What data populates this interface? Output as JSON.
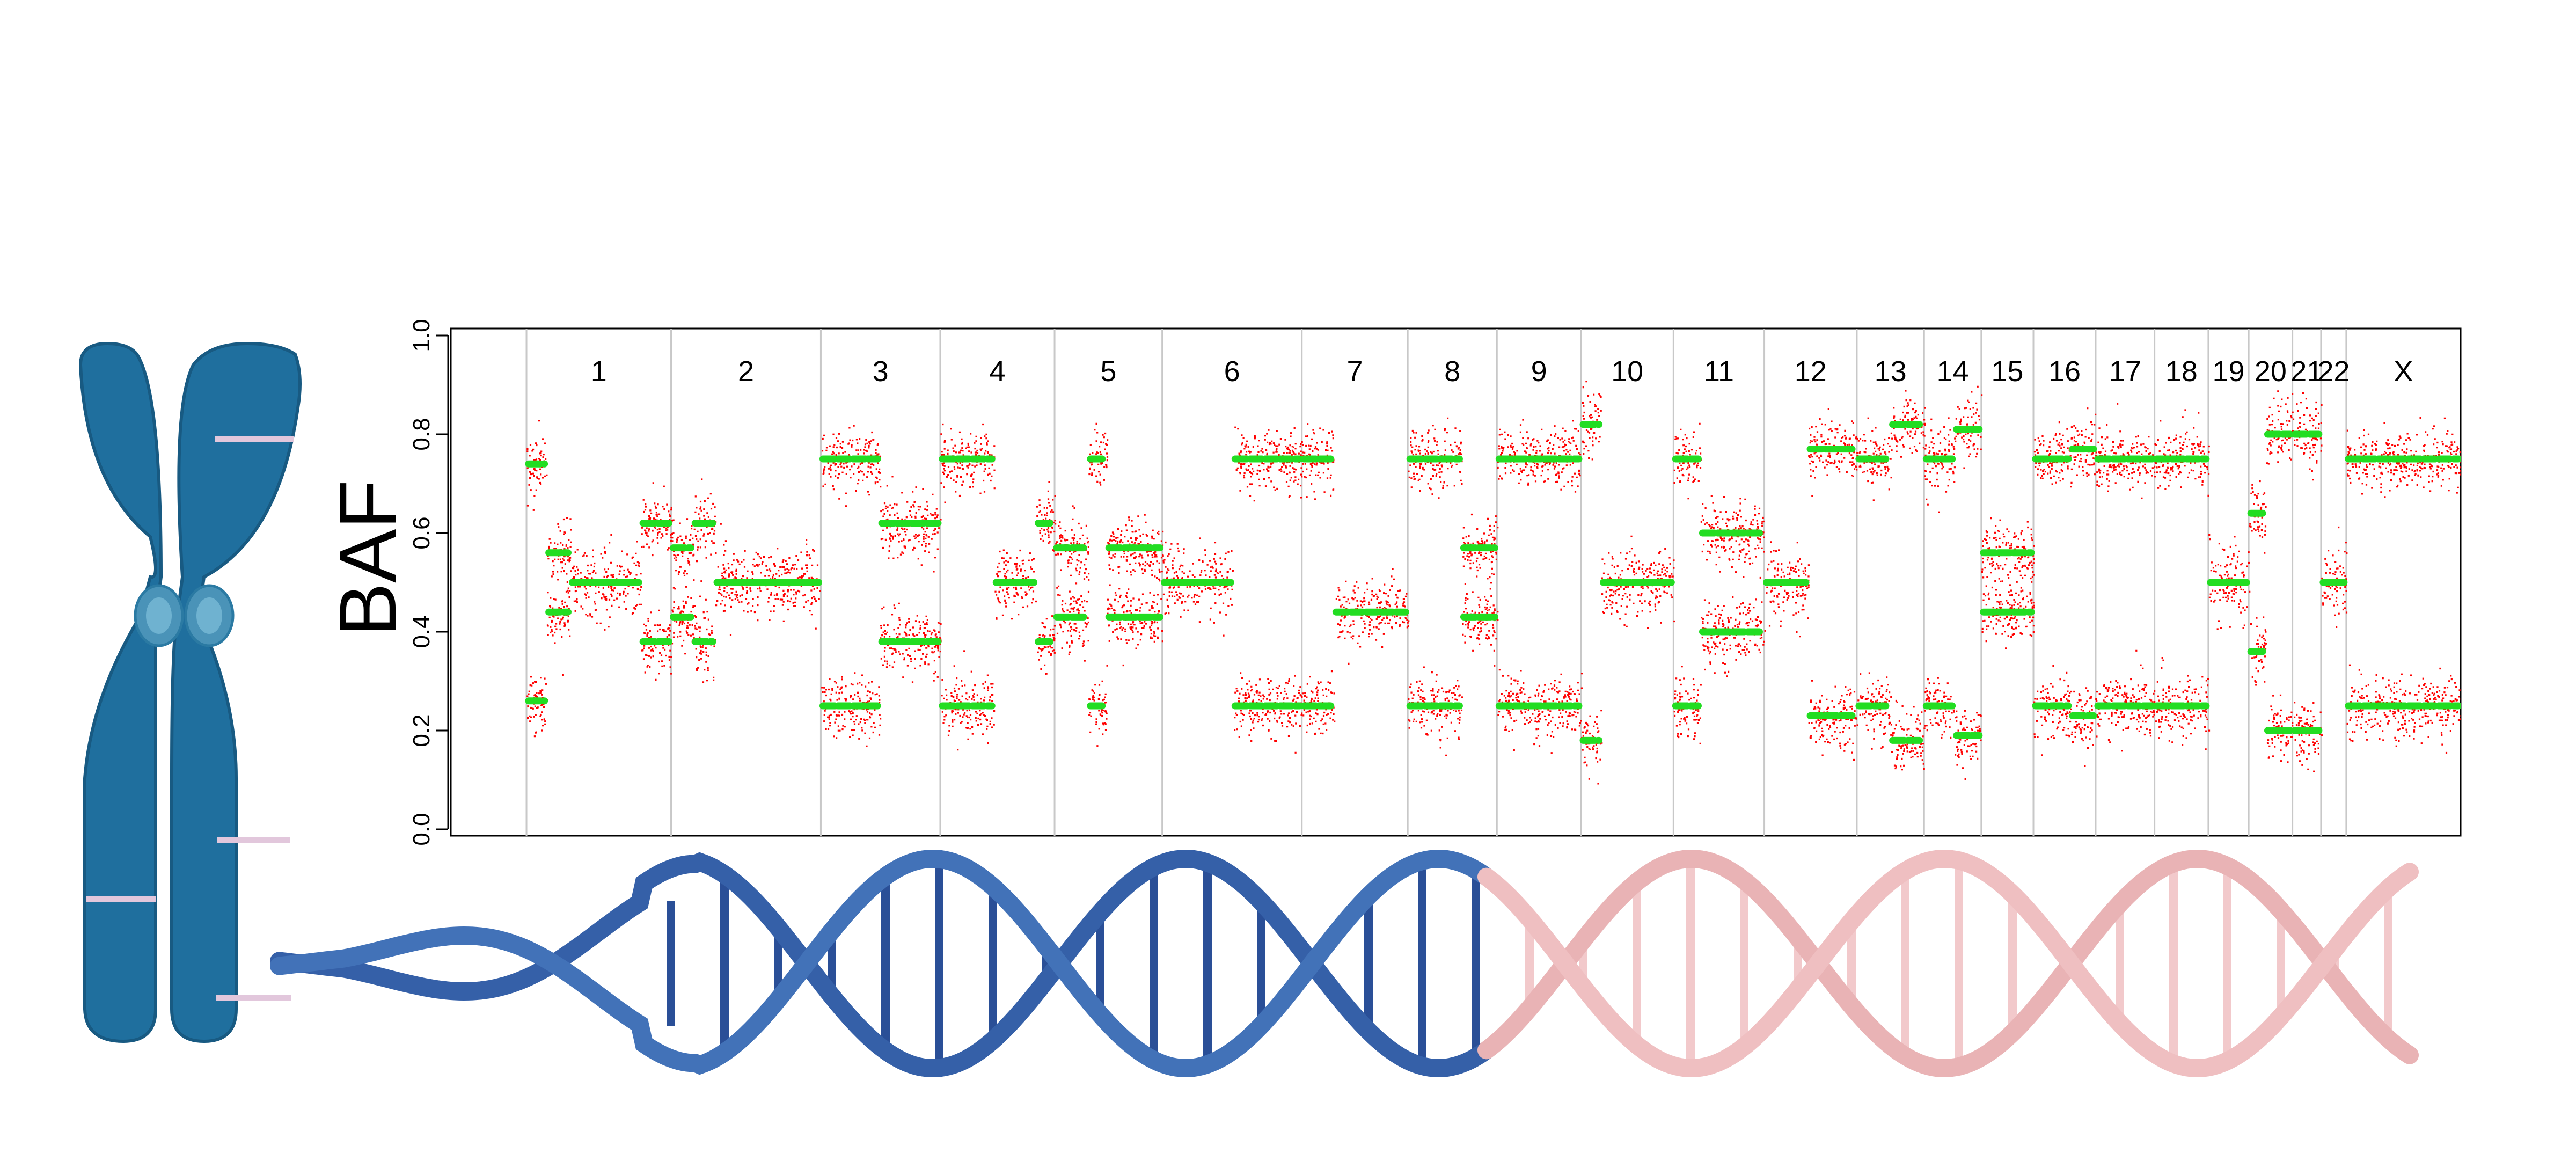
{
  "chart_data": {
    "type": "scatter",
    "title": "",
    "xlabel": "",
    "ylabel": "BAF",
    "ylim": [
      0,
      1
    ],
    "yticks": [
      "0.0",
      "0.2",
      "0.4",
      "0.6",
      "0.8",
      "1.0"
    ],
    "grid": false,
    "legend": "none",
    "colors": {
      "points": "#ff0000",
      "segments": "#22dd22",
      "separator": "#c8c8c8"
    },
    "chromosomes": [
      {
        "label": "1",
        "start": 0.0,
        "end": 8.6
      },
      {
        "label": "2",
        "start": 8.6,
        "end": 17.5
      },
      {
        "label": "3",
        "start": 17.5,
        "end": 24.6
      },
      {
        "label": "4",
        "start": 24.6,
        "end": 31.4
      },
      {
        "label": "5",
        "start": 31.4,
        "end": 37.8
      },
      {
        "label": "6",
        "start": 37.8,
        "end": 46.1
      },
      {
        "label": "7",
        "start": 46.1,
        "end": 52.4
      },
      {
        "label": "8",
        "start": 52.4,
        "end": 57.7
      },
      {
        "label": "9",
        "start": 57.7,
        "end": 62.7
      },
      {
        "label": "10",
        "start": 62.7,
        "end": 68.2
      },
      {
        "label": "11",
        "start": 68.2,
        "end": 73.6
      },
      {
        "label": "12",
        "start": 73.6,
        "end": 79.1
      },
      {
        "label": "13",
        "start": 79.1,
        "end": 83.1
      },
      {
        "label": "14",
        "start": 83.1,
        "end": 86.5
      },
      {
        "label": "15",
        "start": 86.5,
        "end": 89.6
      },
      {
        "label": "16",
        "start": 89.6,
        "end": 93.3
      },
      {
        "label": "17",
        "start": 93.3,
        "end": 96.8
      },
      {
        "label": "18",
        "start": 96.8,
        "end": 100.0
      },
      {
        "label": "19",
        "start": 100.0,
        "end": 102.4
      },
      {
        "label": "20",
        "start": 102.4,
        "end": 105.0
      },
      {
        "label": "21",
        "start": 105.0,
        "end": 106.7
      },
      {
        "label": "22",
        "start": 106.7,
        "end": 108.2
      },
      {
        "label": "X",
        "start": 108.2,
        "end": 115.0
      }
    ],
    "x_range": [
      -4.5,
      115.0
    ],
    "baf_segments": [
      {
        "x": [
          0.0,
          1.2
        ],
        "baf": [
          0.74,
          0.26
        ]
      },
      {
        "x": [
          1.2,
          2.6
        ],
        "baf": [
          0.56,
          0.44
        ]
      },
      {
        "x": [
          2.6,
          6.8
        ],
        "baf": [
          0.5
        ]
      },
      {
        "x": [
          6.8,
          8.6
        ],
        "baf": [
          0.62,
          0.38
        ]
      },
      {
        "x": [
          8.6,
          9.9
        ],
        "baf": [
          0.57,
          0.43
        ]
      },
      {
        "x": [
          9.9,
          11.2
        ],
        "baf": [
          0.62,
          0.38
        ]
      },
      {
        "x": [
          11.2,
          17.5
        ],
        "baf": [
          0.5
        ]
      },
      {
        "x": [
          17.5,
          21.0
        ],
        "baf": [
          0.75,
          0.25
        ]
      },
      {
        "x": [
          21.0,
          24.6
        ],
        "baf": [
          0.62,
          0.38
        ]
      },
      {
        "x": [
          24.6,
          27.8
        ],
        "baf": [
          0.75,
          0.25
        ]
      },
      {
        "x": [
          27.8,
          30.3
        ],
        "baf": [
          0.5
        ]
      },
      {
        "x": [
          30.3,
          31.4
        ],
        "baf": [
          0.62,
          0.38
        ]
      },
      {
        "x": [
          31.4,
          33.4
        ],
        "baf": [
          0.57,
          0.43
        ]
      },
      {
        "x": [
          33.4,
          34.5
        ],
        "baf": [
          0.75,
          0.25
        ]
      },
      {
        "x": [
          34.5,
          37.8
        ],
        "baf": [
          0.57,
          0.43
        ]
      },
      {
        "x": [
          37.8,
          42.0
        ],
        "baf": [
          0.5
        ]
      },
      {
        "x": [
          42.0,
          46.1
        ],
        "baf": [
          0.75,
          0.25
        ]
      },
      {
        "x": [
          46.1,
          48.0
        ],
        "baf": [
          0.75,
          0.25
        ]
      },
      {
        "x": [
          48.0,
          52.4
        ],
        "baf": [
          0.44
        ]
      },
      {
        "x": [
          52.4,
          55.6
        ],
        "baf": [
          0.75,
          0.25
        ]
      },
      {
        "x": [
          55.6,
          57.7
        ],
        "baf": [
          0.57,
          0.43
        ]
      },
      {
        "x": [
          57.7,
          62.7
        ],
        "baf": [
          0.75,
          0.25
        ]
      },
      {
        "x": [
          62.7,
          63.9
        ],
        "baf": [
          0.82,
          0.18
        ]
      },
      {
        "x": [
          63.9,
          68.2
        ],
        "baf": [
          0.5
        ]
      },
      {
        "x": [
          68.2,
          69.8
        ],
        "baf": [
          0.75,
          0.25
        ]
      },
      {
        "x": [
          69.8,
          73.6
        ],
        "baf": [
          0.6,
          0.4
        ]
      },
      {
        "x": [
          73.6,
          76.2
        ],
        "baf": [
          0.5
        ]
      },
      {
        "x": [
          76.2,
          79.1
        ],
        "baf": [
          0.77,
          0.23
        ]
      },
      {
        "x": [
          79.1,
          81.1
        ],
        "baf": [
          0.75,
          0.25
        ]
      },
      {
        "x": [
          81.1,
          83.1
        ],
        "baf": [
          0.82,
          0.18
        ]
      },
      {
        "x": [
          83.1,
          84.9
        ],
        "baf": [
          0.75,
          0.25
        ]
      },
      {
        "x": [
          84.9,
          86.5
        ],
        "baf": [
          0.81,
          0.19
        ]
      },
      {
        "x": [
          86.5,
          89.6
        ],
        "baf": [
          0.56,
          0.44
        ]
      },
      {
        "x": [
          89.6,
          91.8
        ],
        "baf": [
          0.75,
          0.25
        ]
      },
      {
        "x": [
          91.8,
          93.3
        ],
        "baf": [
          0.77,
          0.23
        ]
      },
      {
        "x": [
          93.3,
          96.8
        ],
        "baf": [
          0.75,
          0.25
        ]
      },
      {
        "x": [
          96.8,
          100.0
        ],
        "baf": [
          0.75,
          0.25
        ]
      },
      {
        "x": [
          100.0,
          102.4
        ],
        "baf": [
          0.5
        ]
      },
      {
        "x": [
          102.4,
          103.4
        ],
        "baf": [
          0.64,
          0.36
        ]
      },
      {
        "x": [
          103.4,
          105.0
        ],
        "baf": [
          0.8,
          0.2
        ]
      },
      {
        "x": [
          105.0,
          106.7
        ],
        "baf": [
          0.8,
          0.2
        ]
      },
      {
        "x": [
          106.7,
          108.2
        ],
        "baf": [
          0.5
        ]
      },
      {
        "x": [
          108.2,
          115.0
        ],
        "baf": [
          0.75,
          0.25
        ]
      }
    ]
  }
}
